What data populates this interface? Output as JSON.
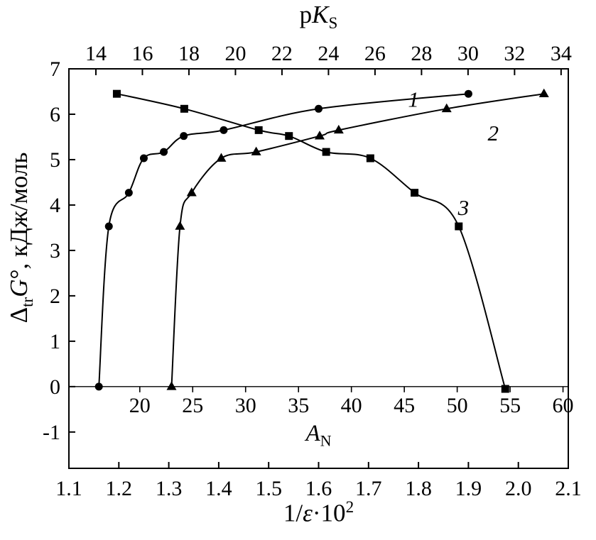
{
  "figure": {
    "background": "#ffffff",
    "ink": "#000000"
  },
  "chart_data": {
    "type": "line",
    "description": "Gibbs transfer energy versus three solvent parameter scales; same nine points plotted against pKS (squares), AN (triangles) and 1/eps (circles)",
    "grid": false,
    "legend_position": "none",
    "y_axis": {
      "title_text": "ΔtrG°, кДж/моль",
      "title_parts": {
        "delta": "Δ",
        "sub": "tr",
        "symbol": "G",
        "degree": "°",
        "rest": ", кДж/моль"
      },
      "min": -1.8,
      "max": 7,
      "ticks": [
        "-1",
        "0",
        "1",
        "2",
        "3",
        "4",
        "5",
        "6",
        "7"
      ]
    },
    "x_axes": {
      "top": {
        "title_text": "pKS",
        "title_parts": {
          "p": "p",
          "k": "K",
          "sub": "S"
        },
        "edge_min": 12.84,
        "edge_max": 34.31,
        "ticks": [
          "14",
          "16",
          "18",
          "20",
          "22",
          "24",
          "26",
          "28",
          "30",
          "32",
          "34"
        ]
      },
      "inner": {
        "title_text": "AN",
        "title_parts": {
          "a": "A",
          "sub": "N"
        },
        "edge_min": 13.3,
        "edge_max": 60.5,
        "line_at_y": 0,
        "ticks": [
          "20",
          "25",
          "30",
          "35",
          "40",
          "45",
          "50",
          "55",
          "60"
        ]
      },
      "bottom": {
        "title_text": "1/ε·10²",
        "title_parts": {
          "pre": "1/",
          "epsilon": "ε",
          "mid": "·10",
          "sup": "2"
        },
        "edge_min": 1.1,
        "edge_max": 2.1,
        "ticks": [
          "1.1",
          "1.2",
          "1.3",
          "1.4",
          "1.5",
          "1.6",
          "1.7",
          "1.8",
          "1.9",
          "2.0",
          "2.1"
        ]
      }
    },
    "series": [
      {
        "name": "1",
        "marker": "circle",
        "x_axis": "bottom",
        "x": [
          1.16,
          1.18,
          1.22,
          1.25,
          1.29,
          1.33,
          1.41,
          1.6,
          1.9
        ],
        "y": [
          0,
          3.53,
          4.27,
          5.03,
          5.17,
          5.52,
          5.65,
          6.12,
          6.45
        ],
        "label": {
          "text": "1",
          "x": 1.79,
          "y": 6.33
        }
      },
      {
        "name": "2",
        "marker": "triangle",
        "x_axis": "inner",
        "x": [
          23,
          23.8,
          24.9,
          27.7,
          31,
          37,
          38.8,
          49,
          58.2
        ],
        "y": [
          0,
          3.53,
          4.27,
          5.03,
          5.17,
          5.52,
          5.65,
          6.12,
          6.45
        ],
        "label": {
          "text": "2",
          "x": 53.4,
          "y": 5.59
        }
      },
      {
        "name": "3",
        "marker": "square",
        "x_axis": "top",
        "x": [
          14.9,
          17.8,
          21.0,
          22.3,
          23.9,
          25.8,
          27.7,
          29.6,
          31.6
        ],
        "y": [
          6.45,
          6.12,
          5.65,
          5.52,
          5.17,
          5.03,
          4.27,
          3.53,
          -0.05
        ],
        "label": {
          "text": "3",
          "x": 29.8,
          "y": 3.95
        }
      }
    ]
  }
}
